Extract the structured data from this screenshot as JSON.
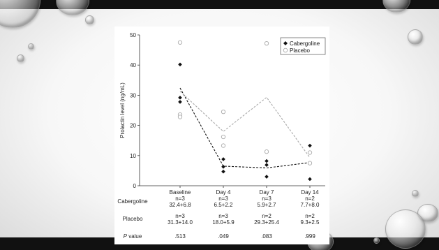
{
  "slide": {
    "background_color": "#f2f2f2",
    "bar_color": "#111111"
  },
  "chart_data": {
    "type": "scatter",
    "categories": [
      "Baseline",
      "Day 4",
      "Day 7",
      "Day 14"
    ],
    "ylabel": "Prolactin level (ng/mL)",
    "ylim": [
      0,
      50
    ],
    "yticks": [
      "0",
      "10",
      "20",
      "30",
      "40",
      "50"
    ],
    "legend_position": "top-right",
    "grid": false,
    "series": [
      {
        "name": "Cabergoline",
        "marker": "filled-diamond",
        "color": "#111111",
        "line_style": "dashed",
        "points": [
          {
            "category": "Baseline",
            "values": [
              40.2,
              29.2,
              27.8
            ]
          },
          {
            "category": "Day 4",
            "values": [
              8.8,
              6.3,
              4.7
            ]
          },
          {
            "category": "Day 7",
            "values": [
              8.2,
              6.9,
              3.0
            ]
          },
          {
            "category": "Day 14",
            "values": [
              13.3,
              2.2
            ]
          }
        ],
        "means": [
          32.4,
          6.5,
          5.9,
          7.7
        ]
      },
      {
        "name": "Placebo",
        "marker": "open-circle",
        "color": "#aaaaaa",
        "line_style": "dashed",
        "points": [
          {
            "category": "Baseline",
            "values": [
              47.5,
              23.6,
              22.8
            ]
          },
          {
            "category": "Day 4",
            "values": [
              24.5,
              16.2,
              13.3
            ]
          },
          {
            "category": "Day 7",
            "values": [
              47.2,
              11.3
            ]
          },
          {
            "category": "Day 14",
            "values": [
              11.0,
              7.5
            ]
          }
        ],
        "means": [
          31.3,
          18.0,
          29.3,
          9.3
        ]
      }
    ],
    "table": {
      "rows": [
        {
          "label": "Cabergoline",
          "italic": false,
          "cells": [
            [
              "n=3",
              "32.4+6.8"
            ],
            [
              "n=3",
              "6.5+2.2"
            ],
            [
              "n=3",
              "5.9+2.7"
            ],
            [
              "n=2",
              "7.7+8.0"
            ]
          ]
        },
        {
          "label": "Placebo",
          "italic": false,
          "cells": [
            [
              "n=3",
              "31.3+14.0"
            ],
            [
              "n=3",
              "18.0+5.9"
            ],
            [
              "n=2",
              "29.3+25.4"
            ],
            [
              "n=2",
              "9.3+2.5"
            ]
          ]
        },
        {
          "label_italic": "P",
          "label": " value",
          "italic": true,
          "cells": [
            [
              ".513"
            ],
            [
              ".049"
            ],
            [
              ".083"
            ],
            [
              ".999"
            ]
          ]
        }
      ]
    }
  }
}
